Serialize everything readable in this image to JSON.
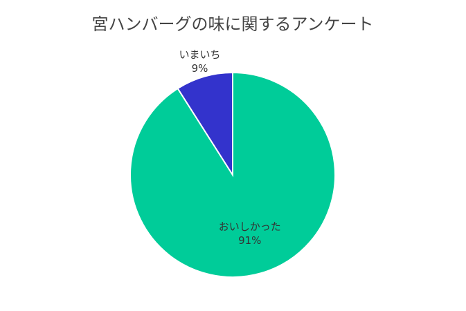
{
  "chart_data": {
    "type": "pie",
    "title": "宮ハンバーグの味に関するアンケート",
    "categories": [
      "おいしかった",
      "いまいち"
    ],
    "values": [
      91,
      9
    ],
    "value_labels": [
      "91%",
      "9%"
    ],
    "colors": [
      "#00cc99",
      "#3333cc"
    ]
  }
}
